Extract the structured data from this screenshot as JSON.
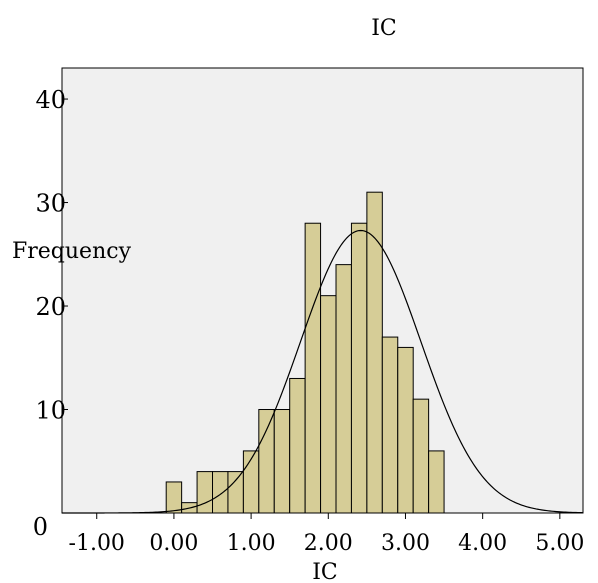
{
  "chart_data": {
    "type": "bar",
    "subtype": "histogram",
    "title": "IC",
    "xlabel": "IC",
    "ylabel": "Frequency",
    "xlim": [
      -1.45,
      5.3
    ],
    "ylim": [
      0,
      43
    ],
    "x_ticks": [
      {
        "value": -1.0,
        "label": "-1.00"
      },
      {
        "value": 0.0,
        "label": "0.00"
      },
      {
        "value": 1.0,
        "label": "1.00"
      },
      {
        "value": 2.0,
        "label": "2.00"
      },
      {
        "value": 3.0,
        "label": "3.00"
      },
      {
        "value": 4.0,
        "label": "4.00"
      },
      {
        "value": 5.0,
        "label": "5.00"
      }
    ],
    "y_ticks": [
      {
        "value": 0,
        "label": "0"
      },
      {
        "value": 10,
        "label": "10"
      },
      {
        "value": 20,
        "label": "20"
      },
      {
        "value": 30,
        "label": "30"
      },
      {
        "value": 40,
        "label": "40"
      }
    ],
    "bins": [
      {
        "start": -0.1,
        "end": 0.1,
        "count": 3
      },
      {
        "start": 0.1,
        "end": 0.3,
        "count": 1
      },
      {
        "start": 0.3,
        "end": 0.5,
        "count": 4
      },
      {
        "start": 0.5,
        "end": 0.7,
        "count": 4
      },
      {
        "start": 0.7,
        "end": 0.9,
        "count": 4
      },
      {
        "start": 0.9,
        "end": 1.1,
        "count": 6
      },
      {
        "start": 1.1,
        "end": 1.3,
        "count": 10
      },
      {
        "start": 1.3,
        "end": 1.5,
        "count": 10
      },
      {
        "start": 1.5,
        "end": 1.7,
        "count": 13
      },
      {
        "start": 1.7,
        "end": 1.9,
        "count": 28
      },
      {
        "start": 1.9,
        "end": 2.1,
        "count": 21
      },
      {
        "start": 2.1,
        "end": 2.3,
        "count": 24
      },
      {
        "start": 2.3,
        "end": 2.5,
        "count": 28
      },
      {
        "start": 2.5,
        "end": 2.7,
        "count": 31
      },
      {
        "start": 2.7,
        "end": 2.9,
        "count": 17
      },
      {
        "start": 2.9,
        "end": 3.1,
        "count": 16
      },
      {
        "start": 3.1,
        "end": 3.3,
        "count": 11
      },
      {
        "start": 3.3,
        "end": 3.5,
        "count": 6
      }
    ],
    "normal_curve": {
      "mean": 2.42,
      "sd": 0.78,
      "peak": 27.3
    },
    "grid": false,
    "legend": "none",
    "colors": {
      "plot_background": "#f0f0f0",
      "bar_fill": "#d6cd97",
      "bar_stroke": "#000000",
      "curve": "#000000",
      "axis": "#000000"
    }
  }
}
